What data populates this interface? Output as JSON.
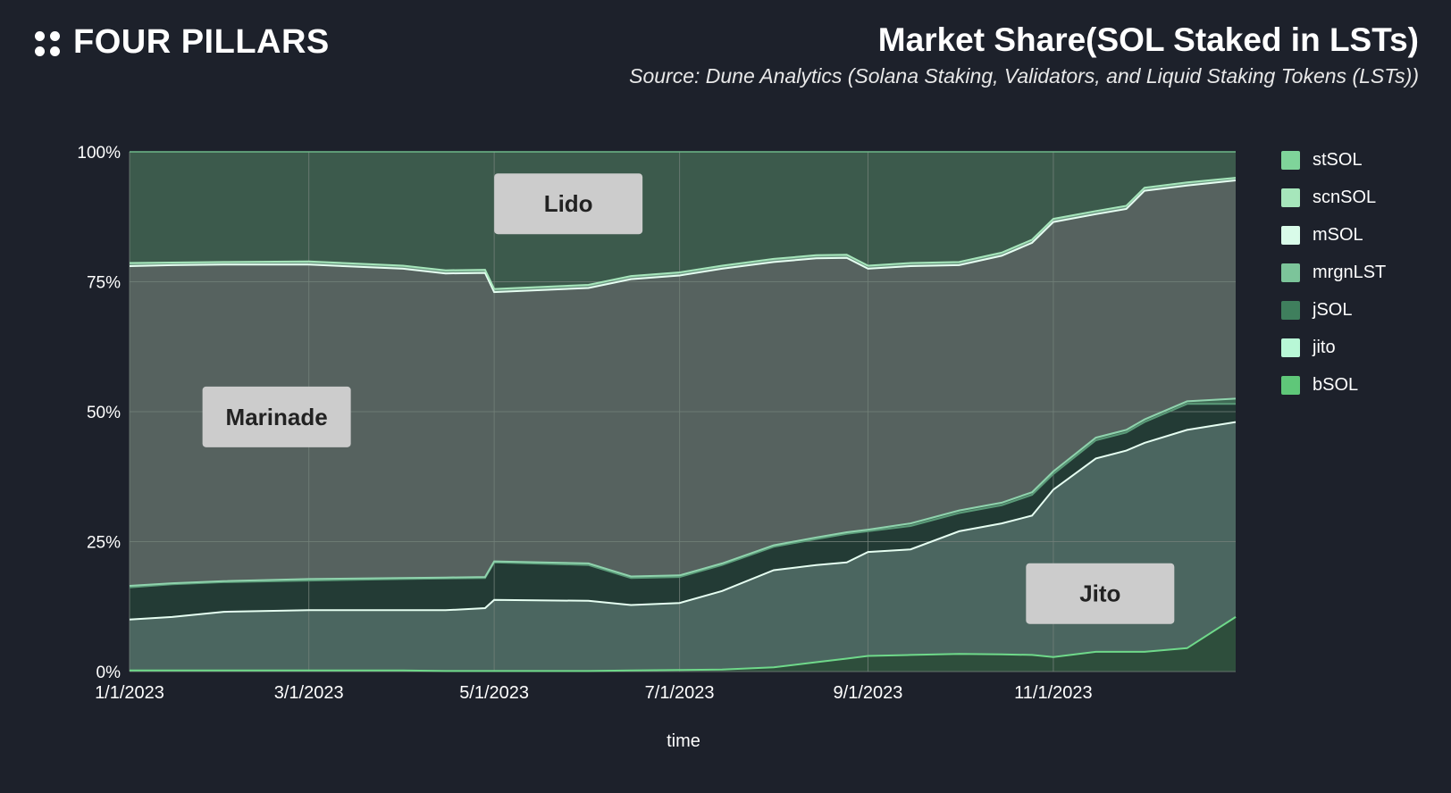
{
  "header": {
    "brand_name": "FOUR PILLARS",
    "title": "Market Share(SOL Staked in LSTs)",
    "subtitle": "Source: Dune Analytics (Solana Staking, Validators, and Liquid Staking Tokens (LSTs))"
  },
  "colors": {
    "background": "#1d212b",
    "plot_area": "#56625f",
    "grid": "#728079",
    "lido_area": "#3c5a4c",
    "jito_area": "#4b6660",
    "jsol_band": "#233b35",
    "bsol_area": "#2e4e3c",
    "label_box": "#cccccc"
  },
  "chart_data": {
    "type": "area",
    "stacking": "percent",
    "x_label": "time",
    "x_range": [
      "2023-01-01",
      "2023-12-31"
    ],
    "y_range": [
      0,
      100
    ],
    "y_ticks": [
      "0%",
      "25%",
      "50%",
      "75%",
      "100%"
    ],
    "x_ticks": [
      {
        "date": "2023-01-01",
        "label": "1/1/2023"
      },
      {
        "date": "2023-03-01",
        "label": "3/1/2023"
      },
      {
        "date": "2023-05-01",
        "label": "5/1/2023"
      },
      {
        "date": "2023-07-01",
        "label": "7/1/2023"
      },
      {
        "date": "2023-09-01",
        "label": "9/1/2023"
      },
      {
        "date": "2023-11-01",
        "label": "11/1/2023"
      }
    ],
    "grid": true,
    "legend_position": "right",
    "legend": [
      {
        "name": "stSOL",
        "color": "#7fd49a"
      },
      {
        "name": "scnSOL",
        "color": "#a6e6bb"
      },
      {
        "name": "mSOL",
        "color": "#d9fbe9"
      },
      {
        "name": "mrgnLST",
        "color": "#7cc49a"
      },
      {
        "name": "jSOL",
        "color": "#3f7f5d"
      },
      {
        "name": "jito",
        "color": "#b8f7d6"
      },
      {
        "name": "bSOL",
        "color": "#5fc779"
      }
    ],
    "annotations": [
      {
        "text": "Lido",
        "date": "2023-05-01",
        "value": 90
      },
      {
        "text": "Marinade",
        "date": "2023-01-25",
        "value": 49
      },
      {
        "text": "Jito",
        "date": "2023-10-23",
        "value": 15
      }
    ],
    "cumulative_boundaries": {
      "dates": [
        "2023-01-01",
        "2023-01-15",
        "2023-02-01",
        "2023-03-01",
        "2023-04-01",
        "2023-04-15",
        "2023-04-28",
        "2023-05-01",
        "2023-06-01",
        "2023-06-15",
        "2023-07-01",
        "2023-07-15",
        "2023-08-01",
        "2023-08-15",
        "2023-08-25",
        "2023-09-01",
        "2023-09-15",
        "2023-10-01",
        "2023-10-15",
        "2023-10-25",
        "2023-11-01",
        "2023-11-15",
        "2023-11-25",
        "2023-12-01",
        "2023-12-15",
        "2023-12-31"
      ],
      "bsol": [
        0.2,
        0.2,
        0.2,
        0.2,
        0.2,
        0.1,
        0.1,
        0.1,
        0.1,
        0.2,
        0.3,
        0.4,
        0.8,
        1.8,
        2.5,
        3.0,
        3.2,
        3.4,
        3.3,
        3.2,
        2.8,
        3.8,
        3.8,
        3.8,
        4.5,
        10.5
      ],
      "jito": [
        10,
        10.5,
        11.5,
        11.8,
        11.8,
        11.8,
        12.2,
        13.8,
        13.6,
        12.8,
        13.2,
        15.5,
        19.5,
        20.5,
        21,
        23,
        23.5,
        27,
        28.5,
        30,
        35,
        41,
        42.5,
        44,
        46.5,
        48
      ],
      "jsol": [
        16.2,
        16.8,
        17.2,
        17.5,
        17.8,
        17.9,
        18.0,
        21.0,
        20.5,
        18.0,
        18.2,
        20.5,
        24.0,
        25.5,
        26.5,
        27.0,
        28.0,
        30.5,
        32.0,
        34.0,
        38.0,
        44.5,
        46.0,
        48.0,
        51.5,
        51.5
      ],
      "mrgnlst": [
        16.5,
        17.0,
        17.4,
        17.8,
        18.0,
        18.1,
        18.2,
        21.2,
        20.8,
        18.3,
        18.5,
        20.8,
        24.3,
        25.8,
        26.8,
        27.3,
        28.5,
        31.0,
        32.5,
        34.5,
        38.5,
        45.0,
        46.5,
        48.5,
        52.0,
        52.5
      ],
      "msol": [
        78,
        78.2,
        78.3,
        78.3,
        77.5,
        76.6,
        76.7,
        73,
        73.8,
        75.5,
        76.2,
        77.5,
        78.8,
        79.5,
        79.6,
        77.5,
        78.0,
        78.2,
        80.0,
        82.5,
        86.5,
        88.0,
        89.0,
        92.5,
        93.5,
        94.5
      ],
      "scnsol": [
        78.6,
        78.7,
        78.8,
        78.9,
        78.1,
        77.2,
        77.3,
        73.6,
        74.4,
        76.1,
        76.8,
        78.1,
        79.4,
        80.1,
        80.2,
        78.1,
        78.6,
        78.8,
        80.6,
        83.1,
        87.1,
        88.6,
        89.6,
        93.1,
        94.1,
        95.0
      ]
    }
  },
  "axis_labels": {
    "x": "time"
  }
}
